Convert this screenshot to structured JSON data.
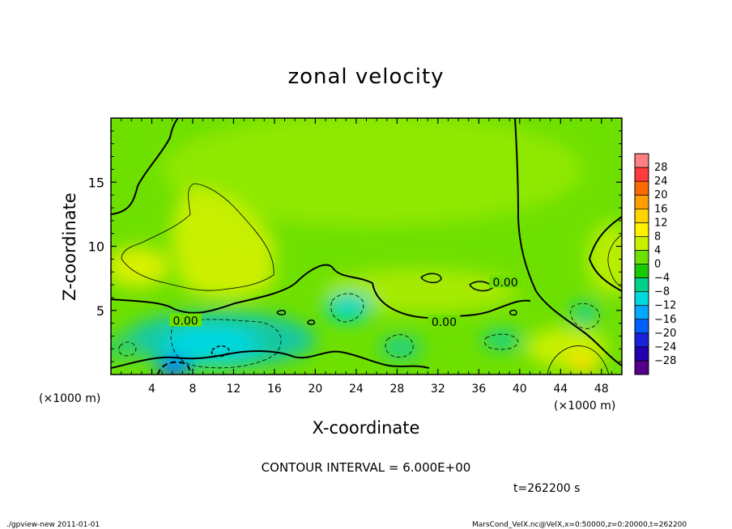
{
  "chart_data": {
    "type": "heatmap",
    "title": "zonal velocity",
    "xlabel": "X-coordinate",
    "ylabel": "Z-coordinate",
    "x_unit": "(×1000 m)",
    "y_unit": "(×1000 m)",
    "xlim": [
      0,
      50
    ],
    "ylim": [
      0,
      20
    ],
    "x_ticks": [
      4,
      8,
      12,
      16,
      20,
      24,
      28,
      32,
      36,
      40,
      44,
      48
    ],
    "y_ticks": [
      5,
      10,
      15
    ],
    "colorbar_levels": [
      28,
      24,
      20,
      16,
      12,
      8,
      4,
      0,
      -4,
      -8,
      -12,
      -16,
      -20,
      -24,
      -28
    ],
    "colorbar_colors": [
      "#ff8080",
      "#ff3b3b",
      "#ff6a00",
      "#ff9f00",
      "#ffd400",
      "#fff200",
      "#c8f000",
      "#6ee000",
      "#18c800",
      "#00d08a",
      "#00d8e0",
      "#00a8ff",
      "#0060ff",
      "#1a22d8",
      "#2200b0",
      "#55008a"
    ],
    "contour_labels": [
      {
        "text": "0.00",
        "x": 7.3,
        "y": 4.2
      },
      {
        "text": "0.00",
        "x": 32.6,
        "y": 4.1
      },
      {
        "text": "0.00",
        "x": 38.6,
        "y": 7.2
      }
    ],
    "contour_interval_text": "CONTOUR INTERVAL = 6.000E+00",
    "time_text": "t=262200 s"
  },
  "footer": {
    "left": "./gpview-new  2011-01-01",
    "right": "MarsCond_VelX.nc@VelX,x=0:50000,z=0:20000,t=262200"
  }
}
